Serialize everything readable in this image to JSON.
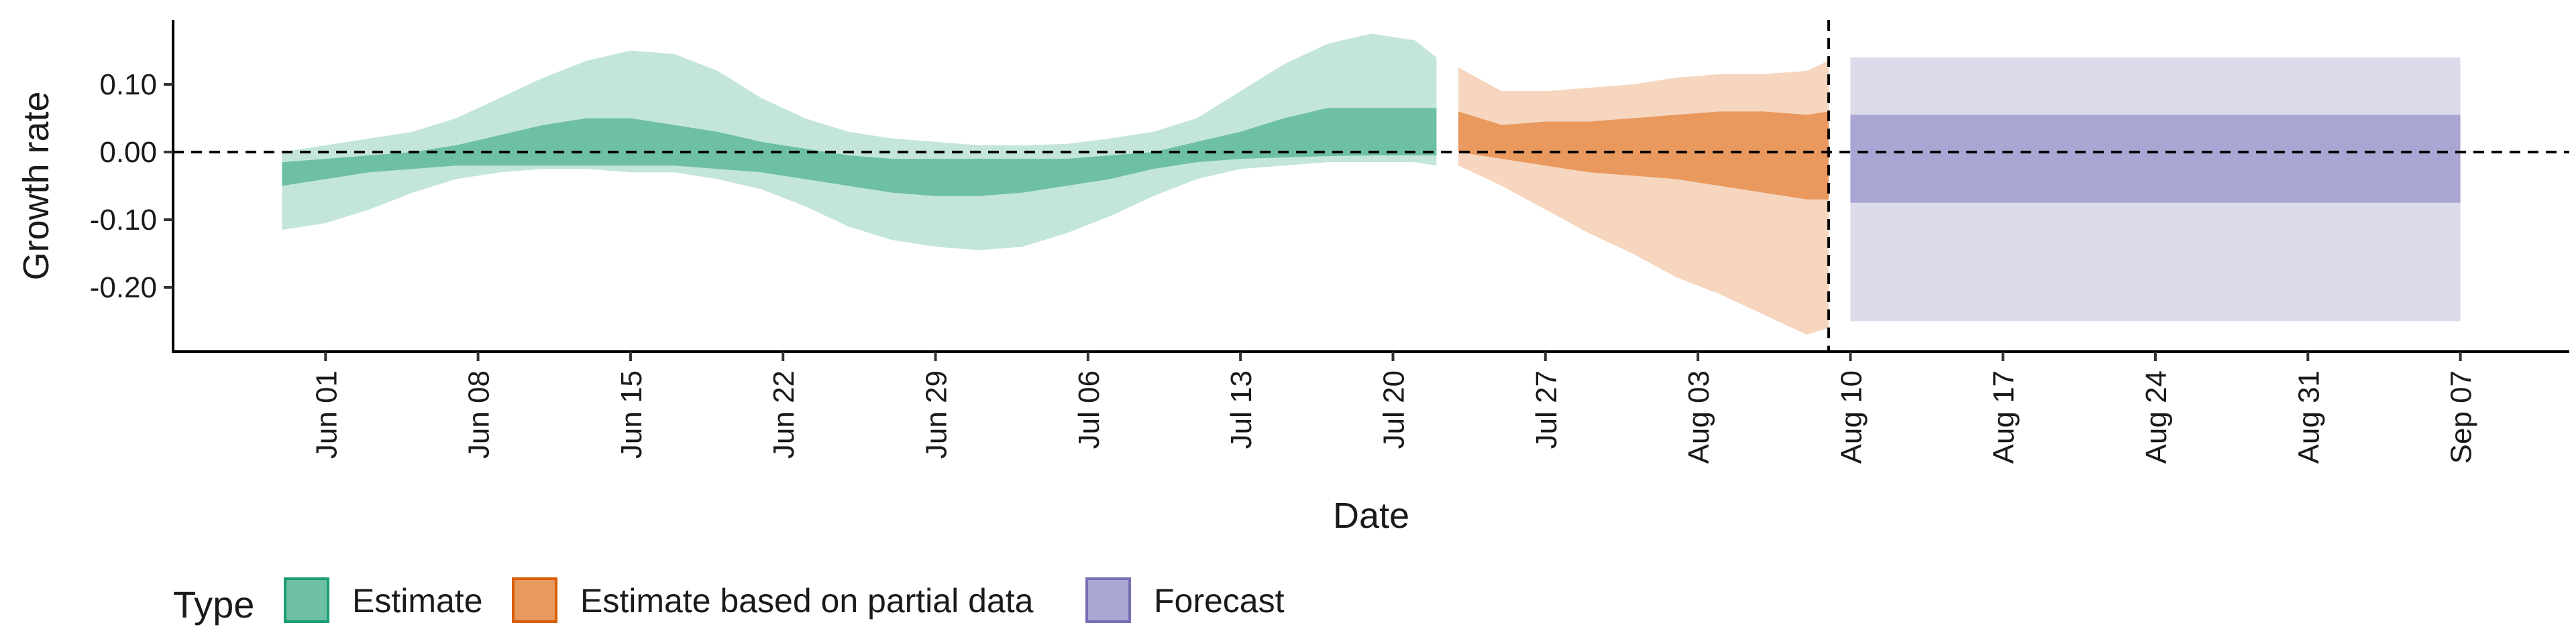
{
  "chart_data": {
    "type": "area",
    "xlabel": "Date",
    "ylabel": "Growth rate",
    "x_tick_labels": [
      "Jun 01",
      "Jun 08",
      "Jun 15",
      "Jun 22",
      "Jun 29",
      "Jul 06",
      "Jul 13",
      "Jul 20",
      "Jul 27",
      "Aug 03",
      "Aug 10",
      "Aug 17",
      "Aug 24",
      "Aug 31",
      "Sep 07"
    ],
    "x_ticks": [
      "2020-06-01",
      "2020-06-08",
      "2020-06-15",
      "2020-06-22",
      "2020-06-29",
      "2020-07-06",
      "2020-07-13",
      "2020-07-20",
      "2020-07-27",
      "2020-08-03",
      "2020-08-10",
      "2020-08-17",
      "2020-08-24",
      "2020-08-31",
      "2020-09-07"
    ],
    "xlim": [
      "2020-05-25",
      "2020-09-12"
    ],
    "y_ticks": [
      0.1,
      0.0,
      -0.1,
      -0.2
    ],
    "y_tick_labels": [
      "0.10",
      "0.00",
      "-0.10",
      "-0.20"
    ],
    "ylim": [
      -0.295,
      0.195
    ],
    "hline_y": 0,
    "vline_x": "2020-08-09",
    "legend": {
      "title": "Type",
      "position": "bottom",
      "items": [
        {
          "label": "Estimate",
          "fill": "#6ec0a4",
          "stroke": "#1b9e77"
        },
        {
          "label": "Estimate based on partial data",
          "fill": "#e9995e",
          "stroke": "#d95f02"
        },
        {
          "label": "Forecast",
          "fill": "#a9a6d3",
          "stroke": "#7570b3"
        }
      ]
    },
    "series": [
      {
        "name": "Estimate",
        "color_inner": "#6ec0a4",
        "color_outer": "#c4e6da",
        "x": [
          "2020-05-30",
          "2020-06-01",
          "2020-06-03",
          "2020-06-05",
          "2020-06-07",
          "2020-06-09",
          "2020-06-11",
          "2020-06-13",
          "2020-06-15",
          "2020-06-17",
          "2020-06-19",
          "2020-06-21",
          "2020-06-23",
          "2020-06-25",
          "2020-06-27",
          "2020-06-29",
          "2020-07-01",
          "2020-07-03",
          "2020-07-05",
          "2020-07-07",
          "2020-07-09",
          "2020-07-11",
          "2020-07-13",
          "2020-07-15",
          "2020-07-17",
          "2020-07-19",
          "2020-07-21",
          "2020-07-22"
        ],
        "outer_hi": [
          0.0,
          0.01,
          0.02,
          0.03,
          0.05,
          0.08,
          0.11,
          0.135,
          0.15,
          0.145,
          0.12,
          0.08,
          0.05,
          0.03,
          0.02,
          0.015,
          0.01,
          0.01,
          0.012,
          0.02,
          0.03,
          0.05,
          0.09,
          0.13,
          0.16,
          0.175,
          0.165,
          0.14
        ],
        "inner_hi": [
          -0.015,
          -0.01,
          -0.005,
          0.0,
          0.01,
          0.025,
          0.04,
          0.05,
          0.05,
          0.04,
          0.03,
          0.015,
          0.005,
          -0.005,
          -0.01,
          -0.01,
          -0.01,
          -0.01,
          -0.01,
          -0.005,
          0.0,
          0.015,
          0.03,
          0.05,
          0.065,
          0.065,
          0.065,
          0.065
        ],
        "inner_lo": [
          -0.05,
          -0.04,
          -0.03,
          -0.025,
          -0.02,
          -0.02,
          -0.02,
          -0.02,
          -0.02,
          -0.02,
          -0.025,
          -0.03,
          -0.04,
          -0.05,
          -0.06,
          -0.065,
          -0.065,
          -0.06,
          -0.05,
          -0.04,
          -0.025,
          -0.015,
          -0.01,
          -0.008,
          -0.006,
          -0.005,
          -0.005,
          -0.005
        ],
        "outer_lo": [
          -0.115,
          -0.105,
          -0.085,
          -0.06,
          -0.04,
          -0.03,
          -0.025,
          -0.025,
          -0.03,
          -0.03,
          -0.04,
          -0.055,
          -0.08,
          -0.11,
          -0.13,
          -0.14,
          -0.145,
          -0.14,
          -0.12,
          -0.095,
          -0.065,
          -0.04,
          -0.025,
          -0.02,
          -0.015,
          -0.015,
          -0.015,
          -0.02
        ]
      },
      {
        "name": "Estimate based on partial data",
        "color_inner": "#e9995e",
        "color_outer": "#f6d6bf",
        "x": [
          "2020-07-23",
          "2020-07-25",
          "2020-07-27",
          "2020-07-29",
          "2020-07-31",
          "2020-08-02",
          "2020-08-04",
          "2020-08-06",
          "2020-08-08",
          "2020-08-09"
        ],
        "outer_hi": [
          0.125,
          0.09,
          0.09,
          0.095,
          0.1,
          0.11,
          0.115,
          0.115,
          0.12,
          0.135
        ],
        "inner_hi": [
          0.06,
          0.04,
          0.045,
          0.045,
          0.05,
          0.055,
          0.06,
          0.06,
          0.055,
          0.06
        ],
        "inner_lo": [
          0.0,
          -0.01,
          -0.02,
          -0.03,
          -0.035,
          -0.04,
          -0.05,
          -0.06,
          -0.07,
          -0.07
        ],
        "outer_lo": [
          -0.02,
          -0.05,
          -0.085,
          -0.12,
          -0.15,
          -0.185,
          -0.21,
          -0.24,
          -0.27,
          -0.26
        ]
      },
      {
        "name": "Forecast",
        "color_inner": "#a9a6d3",
        "color_outer": "#dcdbeb",
        "x": [
          "2020-08-10",
          "2020-09-07"
        ],
        "outer_hi": [
          0.14,
          0.14
        ],
        "inner_hi": [
          0.055,
          0.055
        ],
        "inner_lo": [
          -0.075,
          -0.075
        ],
        "outer_lo": [
          -0.25,
          -0.25
        ]
      }
    ]
  }
}
